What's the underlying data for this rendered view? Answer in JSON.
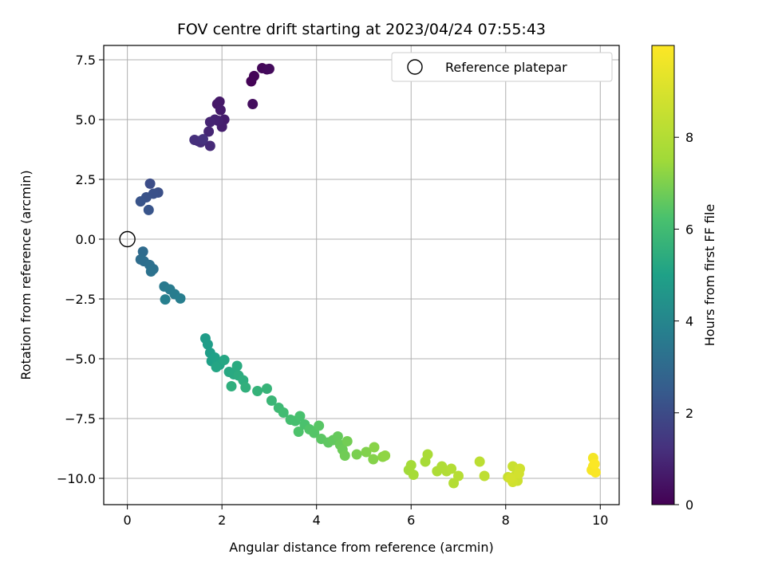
{
  "chart_data": {
    "type": "scatter",
    "title": "FOV centre drift starting at 2023/04/24 07:55:43",
    "xlabel": "Angular distance from reference (arcmin)",
    "ylabel": "Rotation from reference (arcmin)",
    "xlim": [
      -0.5,
      10.4
    ],
    "ylim": [
      -11.1,
      8.1
    ],
    "xticks": [
      0,
      2,
      4,
      6,
      8,
      10
    ],
    "xtick_labels": [
      "0",
      "2",
      "4",
      "6",
      "8",
      "10"
    ],
    "yticks": [
      7.5,
      5.0,
      2.5,
      0.0,
      -2.5,
      -5.0,
      -7.5,
      -10.0
    ],
    "ytick_labels": [
      "7.5",
      "5.0",
      "2.5",
      "0.0",
      "−2.5",
      "−5.0",
      "−7.5",
      "−10.0"
    ],
    "grid": true,
    "legend": {
      "position": "top-right",
      "entries": [
        "Reference platepar"
      ]
    },
    "reference_point": {
      "x": 0,
      "y": 0
    },
    "colorbar": {
      "label": "Hours from first FF file",
      "colormap": "viridis",
      "range": [
        0,
        10
      ],
      "ticks": [
        0,
        2,
        4,
        6,
        8
      ],
      "tick_labels": [
        "0",
        "2",
        "4",
        "6",
        "8"
      ]
    },
    "points": [
      {
        "x": 2.62,
        "y": 6.6,
        "t": 0.05
      },
      {
        "x": 2.68,
        "y": 6.82,
        "t": 0.1
      },
      {
        "x": 2.85,
        "y": 7.15,
        "t": 0.15
      },
      {
        "x": 2.95,
        "y": 7.1,
        "t": 0.2
      },
      {
        "x": 3.0,
        "y": 7.12,
        "t": 0.25
      },
      {
        "x": 2.65,
        "y": 5.65,
        "t": 0.3
      },
      {
        "x": 1.9,
        "y": 5.65,
        "t": 0.55
      },
      {
        "x": 1.95,
        "y": 5.75,
        "t": 0.6
      },
      {
        "x": 1.97,
        "y": 5.4,
        "t": 0.65
      },
      {
        "x": 2.05,
        "y": 5.0,
        "t": 0.7
      },
      {
        "x": 2.0,
        "y": 4.7,
        "t": 0.75
      },
      {
        "x": 1.92,
        "y": 4.95,
        "t": 0.8
      },
      {
        "x": 1.85,
        "y": 5.0,
        "t": 0.85
      },
      {
        "x": 1.75,
        "y": 4.9,
        "t": 0.9
      },
      {
        "x": 1.72,
        "y": 4.5,
        "t": 0.95
      },
      {
        "x": 1.75,
        "y": 3.9,
        "t": 1.05
      },
      {
        "x": 1.55,
        "y": 4.05,
        "t": 1.1
      },
      {
        "x": 1.5,
        "y": 4.1,
        "t": 1.15
      },
      {
        "x": 1.42,
        "y": 4.15,
        "t": 1.2
      },
      {
        "x": 1.6,
        "y": 4.18,
        "t": 1.25
      },
      {
        "x": 0.48,
        "y": 2.32,
        "t": 2.05
      },
      {
        "x": 0.65,
        "y": 1.95,
        "t": 2.1
      },
      {
        "x": 0.55,
        "y": 1.9,
        "t": 2.15
      },
      {
        "x": 0.4,
        "y": 1.75,
        "t": 2.2
      },
      {
        "x": 0.28,
        "y": 1.58,
        "t": 2.25
      },
      {
        "x": 0.45,
        "y": 1.22,
        "t": 2.3
      },
      {
        "x": 0.33,
        "y": -0.52,
        "t": 3.05
      },
      {
        "x": 0.28,
        "y": -0.85,
        "t": 3.1
      },
      {
        "x": 0.35,
        "y": -0.92,
        "t": 3.15
      },
      {
        "x": 0.47,
        "y": -1.08,
        "t": 3.2
      },
      {
        "x": 0.55,
        "y": -1.25,
        "t": 3.25
      },
      {
        "x": 0.5,
        "y": -1.35,
        "t": 3.3
      },
      {
        "x": 0.78,
        "y": -1.98,
        "t": 3.55
      },
      {
        "x": 0.9,
        "y": -2.1,
        "t": 3.6
      },
      {
        "x": 1.0,
        "y": -2.3,
        "t": 3.65
      },
      {
        "x": 1.12,
        "y": -2.48,
        "t": 3.7
      },
      {
        "x": 0.8,
        "y": -2.52,
        "t": 3.75
      },
      {
        "x": 1.65,
        "y": -4.15,
        "t": 4.8
      },
      {
        "x": 1.7,
        "y": -4.4,
        "t": 4.85
      },
      {
        "x": 1.75,
        "y": -4.75,
        "t": 4.9
      },
      {
        "x": 1.78,
        "y": -5.1,
        "t": 4.95
      },
      {
        "x": 1.85,
        "y": -4.95,
        "t": 5.0
      },
      {
        "x": 1.9,
        "y": -5.15,
        "t": 5.05
      },
      {
        "x": 1.95,
        "y": -5.25,
        "t": 5.1
      },
      {
        "x": 1.88,
        "y": -5.35,
        "t": 5.15
      },
      {
        "x": 2.05,
        "y": -5.05,
        "t": 5.2
      },
      {
        "x": 2.15,
        "y": -5.55,
        "t": 5.25
      },
      {
        "x": 2.25,
        "y": -5.65,
        "t": 5.3
      },
      {
        "x": 2.32,
        "y": -5.3,
        "t": 5.35
      },
      {
        "x": 2.35,
        "y": -5.7,
        "t": 5.4
      },
      {
        "x": 2.45,
        "y": -5.9,
        "t": 5.45
      },
      {
        "x": 2.2,
        "y": -6.15,
        "t": 5.5
      },
      {
        "x": 2.5,
        "y": -6.2,
        "t": 5.55
      },
      {
        "x": 2.75,
        "y": -6.35,
        "t": 5.65
      },
      {
        "x": 2.95,
        "y": -6.25,
        "t": 5.7
      },
      {
        "x": 3.05,
        "y": -6.75,
        "t": 5.8
      },
      {
        "x": 3.2,
        "y": -7.05,
        "t": 5.9
      },
      {
        "x": 3.3,
        "y": -7.25,
        "t": 6.0
      },
      {
        "x": 3.45,
        "y": -7.55,
        "t": 6.1
      },
      {
        "x": 3.55,
        "y": -7.6,
        "t": 6.15
      },
      {
        "x": 3.65,
        "y": -7.4,
        "t": 6.2
      },
      {
        "x": 3.75,
        "y": -7.75,
        "t": 6.25
      },
      {
        "x": 3.62,
        "y": -8.05,
        "t": 6.3
      },
      {
        "x": 3.85,
        "y": -7.95,
        "t": 6.35
      },
      {
        "x": 3.95,
        "y": -8.1,
        "t": 6.4
      },
      {
        "x": 4.05,
        "y": -7.8,
        "t": 6.45
      },
      {
        "x": 4.1,
        "y": -8.35,
        "t": 6.5
      },
      {
        "x": 4.25,
        "y": -8.5,
        "t": 6.55
      },
      {
        "x": 4.35,
        "y": -8.4,
        "t": 6.6
      },
      {
        "x": 4.45,
        "y": -8.25,
        "t": 6.65
      },
      {
        "x": 4.5,
        "y": -8.6,
        "t": 6.7
      },
      {
        "x": 4.55,
        "y": -8.8,
        "t": 6.75
      },
      {
        "x": 4.6,
        "y": -9.05,
        "t": 6.8
      },
      {
        "x": 4.65,
        "y": -8.45,
        "t": 6.85
      },
      {
        "x": 4.85,
        "y": -9.0,
        "t": 6.95
      },
      {
        "x": 5.05,
        "y": -8.9,
        "t": 7.05
      },
      {
        "x": 5.2,
        "y": -9.2,
        "t": 7.1
      },
      {
        "x": 5.22,
        "y": -8.7,
        "t": 7.15
      },
      {
        "x": 5.4,
        "y": -9.1,
        "t": 7.2
      },
      {
        "x": 5.45,
        "y": -9.05,
        "t": 7.25
      },
      {
        "x": 5.95,
        "y": -9.65,
        "t": 7.55
      },
      {
        "x": 6.0,
        "y": -9.45,
        "t": 7.6
      },
      {
        "x": 6.05,
        "y": -9.85,
        "t": 7.65
      },
      {
        "x": 6.3,
        "y": -9.3,
        "t": 7.7
      },
      {
        "x": 6.35,
        "y": -9.0,
        "t": 7.75
      },
      {
        "x": 6.55,
        "y": -9.7,
        "t": 7.85
      },
      {
        "x": 6.65,
        "y": -9.5,
        "t": 7.9
      },
      {
        "x": 6.75,
        "y": -9.7,
        "t": 7.95
      },
      {
        "x": 6.85,
        "y": -9.6,
        "t": 8.0
      },
      {
        "x": 6.9,
        "y": -10.2,
        "t": 8.05
      },
      {
        "x": 7.0,
        "y": -9.9,
        "t": 8.1
      },
      {
        "x": 7.45,
        "y": -9.3,
        "t": 8.25
      },
      {
        "x": 7.55,
        "y": -9.9,
        "t": 8.3
      },
      {
        "x": 8.05,
        "y": -9.95,
        "t": 8.55
      },
      {
        "x": 8.15,
        "y": -9.5,
        "t": 8.6
      },
      {
        "x": 8.2,
        "y": -9.9,
        "t": 8.65
      },
      {
        "x": 8.25,
        "y": -10.1,
        "t": 8.7
      },
      {
        "x": 8.3,
        "y": -9.6,
        "t": 8.75
      },
      {
        "x": 8.15,
        "y": -10.15,
        "t": 8.8
      },
      {
        "x": 8.28,
        "y": -9.8,
        "t": 8.85
      },
      {
        "x": 8.1,
        "y": -10.0,
        "t": 8.9
      },
      {
        "x": 9.85,
        "y": -9.15,
        "t": 9.75
      },
      {
        "x": 9.85,
        "y": -9.5,
        "t": 9.8
      },
      {
        "x": 9.82,
        "y": -9.65,
        "t": 9.85
      },
      {
        "x": 9.9,
        "y": -9.75,
        "t": 9.9
      },
      {
        "x": 9.88,
        "y": -9.4,
        "t": 9.95
      }
    ]
  }
}
